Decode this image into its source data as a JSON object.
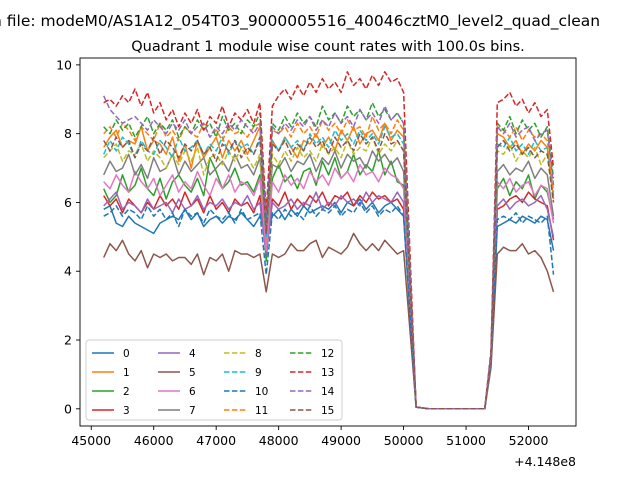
{
  "figure": {
    "suptitle": "n file: modeM0/AS1A12_054T03_9000005516_40046cztM0_level2_quad_clean",
    "title": "Quadrant 1 module wise count rates with 100.0s bins."
  },
  "chart_data": {
    "type": "line",
    "title": "Quadrant 1 module wise count rates with 100.0s bins.",
    "xlabel": "",
    "ylabel": "",
    "x_offset_label": "+4.148e8",
    "xlim": [
      44820,
      52760
    ],
    "ylim": [
      -0.5,
      10.2
    ],
    "xticks": [
      45000,
      46000,
      47000,
      48000,
      49000,
      50000,
      51000,
      52000
    ],
    "xtick_labels": [
      "45000",
      "46000",
      "47000",
      "48000",
      "49000",
      "50000",
      "51000",
      "52000"
    ],
    "yticks": [
      0,
      2,
      4,
      6,
      8,
      10
    ],
    "ytick_labels": [
      "0",
      "2",
      "4",
      "6",
      "8",
      "10"
    ],
    "grid": false,
    "legend_placement": "lower-left",
    "x": [
      45200,
      45300,
      45400,
      45500,
      45600,
      45700,
      45800,
      45900,
      46000,
      46100,
      46200,
      46300,
      46400,
      46500,
      46600,
      46700,
      46800,
      46900,
      47000,
      47100,
      47200,
      47300,
      47400,
      47500,
      47600,
      47700,
      47800,
      47900,
      48000,
      48100,
      48200,
      48300,
      48400,
      48500,
      48600,
      48700,
      48800,
      48900,
      49000,
      49100,
      49200,
      49300,
      49400,
      49500,
      49600,
      49700,
      49800,
      49900,
      50000,
      50200,
      50400,
      50600,
      50800,
      51000,
      51200,
      51300,
      51400,
      51500,
      51600,
      51700,
      51800,
      51900,
      52000,
      52100,
      52200,
      52300,
      52400
    ],
    "series": [
      {
        "name": "0",
        "color": "#1f77b4",
        "dash": "solid",
        "values": [
          5.8,
          5.9,
          5.4,
          5.3,
          5.6,
          5.4,
          5.3,
          5.2,
          5.1,
          5.4,
          5.5,
          5.6,
          5.5,
          5.8,
          5.5,
          5.7,
          5.3,
          5.5,
          5.6,
          5.4,
          5.6,
          5.5,
          5.7,
          5.5,
          5.3,
          5.6,
          5.1,
          5.6,
          5.8,
          5.5,
          5.8,
          5.6,
          5.9,
          5.7,
          5.8,
          5.9,
          5.8,
          6.0,
          5.7,
          6.0,
          5.9,
          6.1,
          5.8,
          6.0,
          5.7,
          5.9,
          6.0,
          5.8,
          5.6,
          0.05,
          0.0,
          0.0,
          0.0,
          0.0,
          0.0,
          0.0,
          1.5,
          5.3,
          5.4,
          5.5,
          5.4,
          5.6,
          5.5,
          5.4,
          5.6,
          5.5,
          4.6
        ]
      },
      {
        "name": "1",
        "color": "#ff7f0e",
        "dash": "solid",
        "values": [
          7.6,
          7.9,
          8.1,
          7.6,
          7.8,
          7.7,
          8.2,
          7.5,
          7.8,
          7.7,
          7.4,
          7.9,
          7.2,
          7.7,
          7.0,
          7.8,
          7.3,
          7.6,
          7.9,
          7.3,
          7.8,
          7.5,
          7.8,
          7.4,
          7.8,
          8.2,
          4.8,
          7.8,
          7.5,
          7.9,
          7.6,
          7.3,
          7.8,
          7.7,
          8.0,
          7.6,
          7.9,
          7.5,
          8.1,
          7.8,
          8.2,
          7.7,
          8.0,
          8.1,
          7.8,
          8.3,
          7.8,
          8.1,
          7.9,
          0.05,
          0.0,
          0.0,
          0.0,
          0.0,
          0.0,
          0.0,
          1.5,
          8.0,
          7.9,
          7.6,
          7.8,
          7.4,
          7.7,
          7.5,
          7.8,
          7.6,
          6.1
        ]
      },
      {
        "name": "2",
        "color": "#2ca02c",
        "dash": "solid",
        "values": [
          6.4,
          6.0,
          6.2,
          6.8,
          6.3,
          6.5,
          7.0,
          6.4,
          6.2,
          6.7,
          6.1,
          6.6,
          6.8,
          6.5,
          6.3,
          6.7,
          6.2,
          7.3,
          6.9,
          6.4,
          6.6,
          7.0,
          6.5,
          6.6,
          6.3,
          6.8,
          4.3,
          6.7,
          7.1,
          6.6,
          6.8,
          6.4,
          6.9,
          7.0,
          6.5,
          7.2,
          6.8,
          7.3,
          6.7,
          6.9,
          7.4,
          6.8,
          7.1,
          6.9,
          7.5,
          6.8,
          7.2,
          6.6,
          6.5,
          0.05,
          0.0,
          0.0,
          0.0,
          0.0,
          0.0,
          0.0,
          1.4,
          6.4,
          6.7,
          6.2,
          6.6,
          6.4,
          6.8,
          6.1,
          6.5,
          6.3,
          5.5
        ]
      },
      {
        "name": "3",
        "color": "#d62728",
        "dash": "solid",
        "values": [
          6.2,
          5.9,
          6.1,
          5.7,
          6.1,
          5.9,
          5.7,
          6.0,
          5.8,
          6.2,
          5.9,
          6.1,
          5.8,
          6.3,
          5.9,
          6.1,
          5.7,
          6.2,
          5.8,
          6.0,
          5.7,
          6.1,
          5.9,
          6.0,
          5.7,
          6.2,
          4.5,
          6.1,
          5.9,
          6.3,
          5.8,
          6.1,
          5.9,
          6.2,
          6.0,
          6.3,
          5.9,
          6.2,
          6.1,
          6.3,
          5.9,
          6.2,
          6.0,
          6.3,
          6.1,
          6.2,
          6.0,
          6.1,
          5.8,
          0.05,
          0.0,
          0.0,
          0.0,
          0.0,
          0.0,
          0.0,
          1.4,
          5.8,
          5.9,
          6.1,
          6.2,
          6.0,
          6.3,
          6.1,
          6.0,
          5.9,
          4.9
        ]
      },
      {
        "name": "4",
        "color": "#9467bd",
        "dash": "solid",
        "values": [
          5.9,
          6.1,
          6.3,
          5.8,
          6.0,
          5.9,
          5.7,
          6.1,
          5.8,
          5.9,
          6.0,
          5.7,
          6.1,
          5.8,
          5.9,
          6.2,
          5.8,
          6.0,
          5.9,
          6.1,
          5.8,
          6.0,
          5.9,
          6.2,
          5.8,
          6.0,
          4.5,
          6.0,
          5.8,
          5.9,
          6.1,
          5.8,
          6.0,
          5.9,
          6.3,
          5.8,
          6.0,
          5.9,
          6.2,
          6.0,
          6.1,
          5.9,
          6.3,
          6.0,
          6.2,
          6.1,
          6.0,
          6.3,
          6.0,
          0.05,
          0.0,
          0.0,
          0.0,
          0.0,
          0.0,
          0.0,
          1.4,
          5.9,
          6.1,
          5.8,
          6.0,
          6.1,
          5.9,
          6.0,
          6.2,
          5.8,
          5.0
        ]
      },
      {
        "name": "5",
        "color": "#8c564b",
        "dash": "solid",
        "values": [
          4.4,
          4.8,
          4.6,
          4.9,
          4.5,
          4.3,
          4.6,
          4.1,
          4.5,
          4.4,
          4.5,
          4.3,
          4.4,
          4.4,
          4.2,
          4.5,
          3.9,
          4.4,
          4.3,
          4.5,
          4.0,
          4.6,
          4.5,
          4.5,
          4.4,
          4.5,
          3.4,
          4.5,
          4.4,
          4.5,
          4.8,
          4.6,
          4.6,
          4.8,
          4.9,
          4.4,
          4.7,
          4.6,
          4.5,
          4.7,
          5.1,
          4.8,
          4.6,
          4.8,
          4.6,
          4.9,
          4.7,
          4.5,
          4.6,
          0.05,
          0.0,
          0.0,
          0.0,
          0.0,
          0.0,
          0.0,
          1.2,
          4.5,
          4.7,
          4.6,
          4.6,
          4.8,
          4.5,
          4.6,
          4.4,
          4.0,
          3.4
        ]
      },
      {
        "name": "6",
        "color": "#e377c2",
        "dash": "solid",
        "values": [
          6.6,
          6.4,
          6.8,
          6.5,
          6.3,
          6.9,
          6.6,
          6.4,
          6.7,
          6.2,
          6.5,
          6.8,
          6.3,
          6.6,
          6.4,
          6.9,
          6.5,
          6.2,
          6.7,
          6.4,
          6.8,
          6.3,
          6.6,
          6.5,
          6.2,
          6.7,
          4.6,
          6.6,
          6.3,
          6.8,
          6.5,
          6.7,
          6.4,
          6.9,
          6.6,
          6.8,
          6.5,
          7.0,
          6.7,
          6.9,
          6.6,
          7.1,
          6.8,
          6.9,
          6.6,
          7.0,
          6.8,
          6.7,
          6.4,
          0.05,
          0.0,
          0.0,
          0.0,
          0.0,
          0.0,
          0.0,
          1.4,
          6.6,
          6.4,
          6.7,
          6.3,
          6.5,
          6.6,
          6.2,
          6.5,
          6.4,
          5.4
        ]
      },
      {
        "name": "7",
        "color": "#7f7f7f",
        "dash": "solid",
        "values": [
          6.8,
          7.2,
          6.9,
          7.0,
          7.4,
          6.8,
          7.1,
          6.7,
          7.3,
          6.9,
          7.0,
          7.4,
          6.8,
          7.2,
          6.9,
          7.1,
          7.3,
          6.8,
          7.0,
          7.2,
          6.9,
          7.4,
          7.0,
          7.1,
          6.8,
          7.3,
          5.0,
          7.1,
          7.0,
          7.3,
          6.9,
          7.2,
          7.1,
          7.4,
          6.9,
          7.3,
          7.1,
          7.5,
          7.0,
          7.4,
          7.2,
          7.3,
          7.0,
          7.5,
          7.2,
          7.4,
          7.1,
          7.3,
          6.9,
          0.05,
          0.0,
          0.0,
          0.0,
          0.0,
          0.0,
          0.0,
          1.5,
          6.9,
          7.1,
          6.8,
          7.0,
          6.9,
          7.2,
          6.7,
          7.0,
          6.8,
          5.6
        ]
      },
      {
        "name": "8",
        "color": "#bcbd22",
        "dash": "dashed",
        "values": [
          7.3,
          7.5,
          7.7,
          7.2,
          7.5,
          7.4,
          7.7,
          7.2,
          7.5,
          7.3,
          7.0,
          7.4,
          7.1,
          7.5,
          7.2,
          7.6,
          6.8,
          7.3,
          7.4,
          7.1,
          7.5,
          7.2,
          7.6,
          7.3,
          7.0,
          7.4,
          5.0,
          7.4,
          7.1,
          7.5,
          7.2,
          7.6,
          7.3,
          7.5,
          7.2,
          7.7,
          7.4,
          7.6,
          7.3,
          7.8,
          7.4,
          7.6,
          7.5,
          7.9,
          7.4,
          7.7,
          7.5,
          7.8,
          7.5,
          0.05,
          0.0,
          0.0,
          0.0,
          0.0,
          0.0,
          0.0,
          1.5,
          7.5,
          7.4,
          7.7,
          7.2,
          7.5,
          7.3,
          7.6,
          7.1,
          7.4,
          6.0
        ]
      },
      {
        "name": "9",
        "color": "#17becf",
        "dash": "dashed",
        "values": [
          7.4,
          7.8,
          7.5,
          7.9,
          7.7,
          7.3,
          7.8,
          7.5,
          7.4,
          7.8,
          7.6,
          7.3,
          7.9,
          7.5,
          7.6,
          7.8,
          7.4,
          7.7,
          7.5,
          7.9,
          7.4,
          7.8,
          7.6,
          7.7,
          7.4,
          7.8,
          5.0,
          7.8,
          7.5,
          7.9,
          7.6,
          7.8,
          7.5,
          8.0,
          7.7,
          7.9,
          7.6,
          8.1,
          7.8,
          8.0,
          7.7,
          8.1,
          7.8,
          8.0,
          7.7,
          8.2,
          7.9,
          8.0,
          7.7,
          0.05,
          0.0,
          0.0,
          0.0,
          0.0,
          0.0,
          0.0,
          1.5,
          7.7,
          7.6,
          7.9,
          7.5,
          7.7,
          7.4,
          7.8,
          7.5,
          7.6,
          6.2
        ]
      },
      {
        "name": "10",
        "color": "#1f77b4",
        "dash": "dashed",
        "values": [
          5.6,
          5.7,
          5.9,
          5.6,
          5.8,
          5.7,
          5.5,
          5.9,
          5.6,
          5.8,
          5.5,
          5.7,
          5.3,
          5.8,
          5.6,
          5.7,
          5.4,
          5.8,
          5.6,
          5.5,
          5.7,
          5.4,
          5.8,
          5.5,
          5.6,
          5.7,
          3.9,
          5.7,
          5.5,
          5.8,
          5.6,
          5.7,
          5.5,
          5.9,
          5.6,
          5.8,
          5.7,
          5.9,
          5.6,
          5.8,
          5.7,
          6.0,
          5.7,
          5.9,
          5.6,
          5.8,
          5.7,
          5.9,
          5.6,
          0.05,
          0.0,
          0.0,
          0.0,
          0.0,
          0.0,
          0.0,
          1.4,
          5.5,
          5.6,
          5.5,
          5.7,
          5.4,
          5.6,
          5.5,
          5.4,
          5.6,
          3.9
        ]
      },
      {
        "name": "11",
        "color": "#ff7f0e",
        "dash": "dashed",
        "values": [
          8.0,
          8.2,
          7.9,
          8.3,
          8.1,
          7.8,
          8.2,
          8.0,
          7.8,
          8.3,
          7.9,
          8.1,
          7.8,
          8.2,
          8.0,
          7.9,
          8.3,
          7.9,
          8.1,
          7.8,
          8.2,
          8.0,
          8.1,
          7.9,
          8.2,
          8.3,
          5.2,
          8.1,
          8.0,
          8.2,
          7.9,
          8.3,
          8.0,
          8.2,
          7.9,
          8.4,
          8.1,
          8.3,
          8.0,
          8.4,
          8.1,
          8.2,
          7.9,
          8.5,
          8.1,
          8.3,
          8.0,
          8.4,
          8.1,
          0.05,
          0.0,
          0.0,
          0.0,
          0.0,
          0.0,
          0.0,
          1.6,
          8.2,
          8.1,
          7.9,
          8.2,
          7.8,
          8.1,
          7.9,
          8.0,
          7.8,
          6.3
        ]
      },
      {
        "name": "12",
        "color": "#2ca02c",
        "dash": "dashed",
        "values": [
          8.2,
          8.0,
          8.4,
          8.1,
          8.3,
          7.9,
          8.2,
          8.5,
          8.0,
          8.3,
          8.1,
          8.4,
          7.9,
          8.2,
          8.0,
          8.4,
          8.1,
          8.3,
          7.9,
          8.5,
          8.1,
          8.3,
          8.0,
          8.4,
          8.2,
          8.6,
          5.5,
          8.3,
          8.1,
          8.5,
          8.2,
          8.6,
          8.3,
          8.5,
          8.2,
          8.8,
          8.4,
          8.6,
          8.3,
          8.8,
          8.5,
          8.7,
          8.4,
          8.9,
          8.5,
          8.7,
          8.4,
          8.6,
          8.3,
          0.05,
          0.0,
          0.0,
          0.0,
          0.0,
          0.0,
          0.0,
          1.6,
          8.3,
          8.1,
          8.5,
          8.0,
          8.4,
          8.1,
          8.3,
          7.9,
          8.2,
          6.7
        ]
      },
      {
        "name": "13",
        "color": "#d62728",
        "dash": "dashed",
        "values": [
          8.9,
          9.0,
          8.8,
          9.1,
          8.9,
          9.3,
          8.8,
          9.2,
          8.6,
          8.9,
          8.4,
          8.7,
          8.2,
          8.6,
          8.3,
          8.7,
          8.1,
          8.5,
          8.3,
          8.8,
          8.2,
          8.6,
          8.4,
          8.7,
          8.3,
          8.9,
          5.7,
          8.8,
          9.1,
          9.3,
          9.0,
          9.4,
          9.1,
          9.5,
          9.2,
          9.6,
          9.3,
          9.5,
          9.2,
          9.8,
          9.4,
          9.6,
          9.3,
          9.7,
          9.4,
          9.8,
          9.5,
          9.6,
          9.2,
          0.05,
          0.0,
          0.0,
          0.0,
          0.0,
          0.0,
          0.0,
          1.7,
          8.9,
          9.0,
          9.2,
          8.8,
          9.0,
          8.6,
          8.9,
          8.5,
          8.7,
          7.0
        ]
      },
      {
        "name": "14",
        "color": "#9467bd",
        "dash": "dashed",
        "values": [
          9.1,
          8.7,
          8.5,
          8.3,
          8.4,
          8.5,
          8.3,
          8.1,
          8.4,
          8.2,
          8.0,
          8.3,
          8.1,
          8.4,
          8.0,
          8.2,
          8.3,
          7.9,
          8.2,
          8.0,
          8.3,
          8.1,
          8.4,
          8.2,
          8.0,
          8.3,
          5.4,
          8.2,
          8.0,
          8.3,
          8.1,
          8.4,
          8.2,
          8.5,
          8.1,
          8.4,
          8.2,
          8.6,
          8.3,
          8.5,
          8.2,
          8.7,
          8.4,
          8.6,
          8.3,
          8.8,
          8.4,
          8.6,
          8.3,
          0.05,
          0.0,
          0.0,
          0.0,
          0.0,
          0.0,
          0.0,
          1.6,
          8.2,
          8.0,
          8.3,
          7.9,
          8.1,
          8.2,
          7.8,
          8.0,
          8.1,
          6.5
        ]
      },
      {
        "name": "15",
        "color": "#8c564b",
        "dash": "dashed",
        "values": [
          7.8,
          7.5,
          7.9,
          7.6,
          7.8,
          7.3,
          7.7,
          7.5,
          7.9,
          7.4,
          7.8,
          7.6,
          7.3,
          7.7,
          7.5,
          7.8,
          7.4,
          7.6,
          7.2,
          7.7,
          7.5,
          7.8,
          7.3,
          7.6,
          7.4,
          7.9,
          5.1,
          7.7,
          7.5,
          7.8,
          7.4,
          7.7,
          7.5,
          7.9,
          7.6,
          7.8,
          7.4,
          7.9,
          7.6,
          7.8,
          7.5,
          8.0,
          7.7,
          7.9,
          7.5,
          8.0,
          7.7,
          7.8,
          7.5,
          0.05,
          0.0,
          0.0,
          0.0,
          0.0,
          0.0,
          0.0,
          1.5,
          7.6,
          7.8,
          7.5,
          7.7,
          7.4,
          7.6,
          7.3,
          7.5,
          7.4,
          6.0
        ]
      }
    ]
  }
}
